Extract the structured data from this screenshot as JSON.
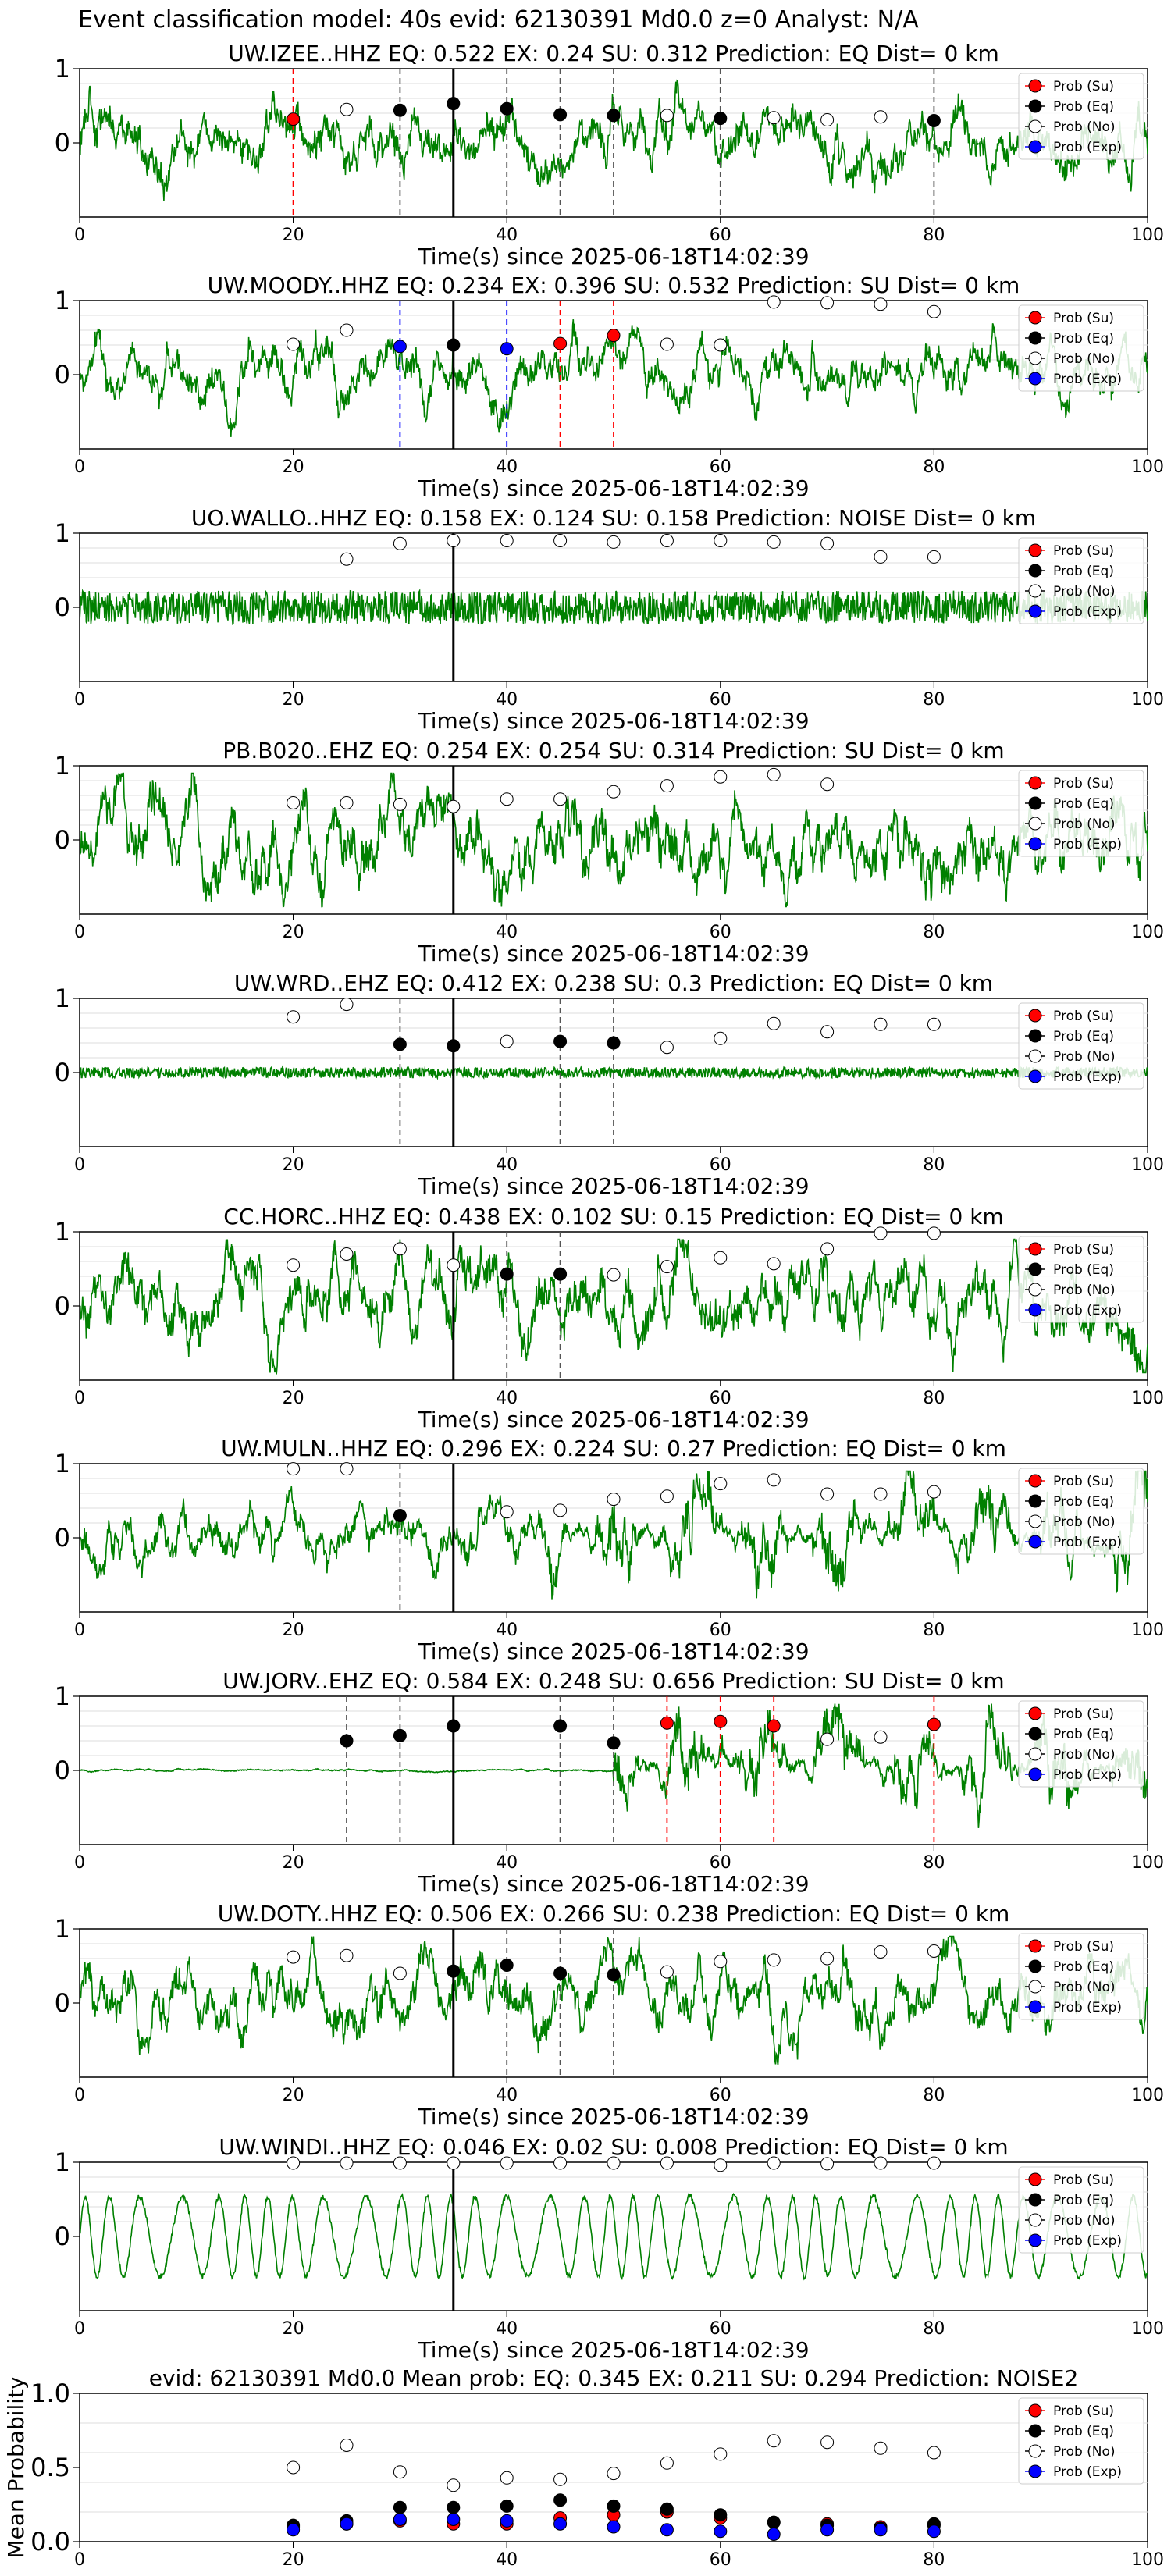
{
  "figure": {
    "title": "Event classification model: 40s evid: 62130391 Md0.0 z=0 Analyst: N/A"
  },
  "colors": {
    "waveform": "#008000",
    "su": "#ff0000",
    "eq": "#000000",
    "no": "#ffffff",
    "exp": "#0000ff",
    "origin_line": "#000000"
  },
  "legend_labels": [
    "Prob (Su)",
    "Prob (Eq)",
    "Prob (No)",
    "Prob (Exp)"
  ],
  "chart_data": [
    {
      "type": "line",
      "title": "UW.IZEE..HHZ   EQ: 0.522  EX: 0.24  SU: 0.312   Prediction: EQ    Dist= 0 km",
      "xlabel": "Time(s) since 2025-06-18T14:02:39",
      "ylabel": "",
      "xlim": [
        0,
        100
      ],
      "ylim": [
        -1,
        1
      ],
      "xticks": [
        "0",
        "20",
        "40",
        "60",
        "80",
        "100"
      ],
      "yticks": [
        "0",
        "1"
      ],
      "legend": "top-right",
      "grid": "y",
      "waveform": {
        "style": "medium",
        "amp": 0.55,
        "seed": 11
      },
      "origin_time": 35,
      "points": [
        {
          "t": 20,
          "p": 0.32,
          "c": "su"
        },
        {
          "t": 25,
          "p": 0.45,
          "c": "no"
        },
        {
          "t": 30,
          "p": 0.44,
          "c": "eq"
        },
        {
          "t": 35,
          "p": 0.53,
          "c": "eq"
        },
        {
          "t": 40,
          "p": 0.46,
          "c": "eq"
        },
        {
          "t": 45,
          "p": 0.38,
          "c": "eq"
        },
        {
          "t": 50,
          "p": 0.37,
          "c": "eq"
        },
        {
          "t": 55,
          "p": 0.37,
          "c": "no"
        },
        {
          "t": 60,
          "p": 0.33,
          "c": "eq"
        },
        {
          "t": 65,
          "p": 0.34,
          "c": "no"
        },
        {
          "t": 70,
          "p": 0.31,
          "c": "no"
        },
        {
          "t": 75,
          "p": 0.35,
          "c": "no"
        },
        {
          "t": 80,
          "p": 0.3,
          "c": "eq"
        }
      ]
    },
    {
      "type": "line",
      "title": "UW.MOODY..HHZ   EQ: 0.234  EX: 0.396  SU: 0.532   Prediction: SU    Dist= 0 km",
      "xlabel": "Time(s) since 2025-06-18T14:02:39",
      "ylabel": "",
      "xlim": [
        0,
        100
      ],
      "ylim": [
        -1,
        1
      ],
      "xticks": [
        "0",
        "20",
        "40",
        "60",
        "80",
        "100"
      ],
      "yticks": [
        "0",
        "1"
      ],
      "legend": "top-right",
      "grid": "y",
      "waveform": {
        "style": "medium",
        "amp": 0.5,
        "seed": 23
      },
      "origin_time": 35,
      "points": [
        {
          "t": 20,
          "p": 0.41,
          "c": "no"
        },
        {
          "t": 25,
          "p": 0.6,
          "c": "no"
        },
        {
          "t": 30,
          "p": 0.38,
          "c": "exp"
        },
        {
          "t": 35,
          "p": 0.4,
          "c": "eq"
        },
        {
          "t": 40,
          "p": 0.35,
          "c": "exp"
        },
        {
          "t": 45,
          "p": 0.42,
          "c": "su"
        },
        {
          "t": 50,
          "p": 0.53,
          "c": "su"
        },
        {
          "t": 55,
          "p": 0.41,
          "c": "no"
        },
        {
          "t": 60,
          "p": 0.4,
          "c": "no"
        },
        {
          "t": 65,
          "p": 0.98,
          "c": "no"
        },
        {
          "t": 70,
          "p": 0.97,
          "c": "no"
        },
        {
          "t": 75,
          "p": 0.95,
          "c": "no"
        },
        {
          "t": 80,
          "p": 0.85,
          "c": "no"
        }
      ]
    },
    {
      "type": "line",
      "title": "UO.WALLO..HHZ   EQ: 0.158  EX: 0.124  SU: 0.158   Prediction: NOISE    Dist= 0 km",
      "xlabel": "Time(s) since 2025-06-18T14:02:39",
      "ylabel": "",
      "xlim": [
        0,
        100
      ],
      "ylim": [
        -1,
        1
      ],
      "xticks": [
        "0",
        "20",
        "40",
        "60",
        "80",
        "100"
      ],
      "yticks": [
        "0",
        "1"
      ],
      "legend": "top-right",
      "grid": "y",
      "waveform": {
        "style": "noise",
        "amp": 0.25,
        "seed": 37
      },
      "origin_time": 35,
      "points": [
        {
          "t": 25,
          "p": 0.65,
          "c": "no"
        },
        {
          "t": 30,
          "p": 0.86,
          "c": "no"
        },
        {
          "t": 35,
          "p": 0.9,
          "c": "no"
        },
        {
          "t": 40,
          "p": 0.9,
          "c": "no"
        },
        {
          "t": 45,
          "p": 0.9,
          "c": "no"
        },
        {
          "t": 50,
          "p": 0.88,
          "c": "no"
        },
        {
          "t": 55,
          "p": 0.9,
          "c": "no"
        },
        {
          "t": 60,
          "p": 0.9,
          "c": "no"
        },
        {
          "t": 65,
          "p": 0.88,
          "c": "no"
        },
        {
          "t": 70,
          "p": 0.86,
          "c": "no"
        },
        {
          "t": 75,
          "p": 0.68,
          "c": "no"
        },
        {
          "t": 80,
          "p": 0.68,
          "c": "no"
        }
      ]
    },
    {
      "type": "line",
      "title": "PB.B020..EHZ   EQ: 0.254  EX: 0.254  SU: 0.314   Prediction: SU    Dist= 0 km",
      "xlabel": "Time(s) since 2025-06-18T14:02:39",
      "ylabel": "",
      "xlim": [
        0,
        100
      ],
      "ylim": [
        -1,
        1
      ],
      "xticks": [
        "0",
        "20",
        "40",
        "60",
        "80",
        "100"
      ],
      "yticks": [
        "0",
        "1"
      ],
      "legend": "top-right",
      "grid": "y",
      "waveform": {
        "style": "strong",
        "amp": 0.75,
        "seed": 41
      },
      "origin_time": 35,
      "points": [
        {
          "t": 20,
          "p": 0.5,
          "c": "no"
        },
        {
          "t": 25,
          "p": 0.5,
          "c": "no"
        },
        {
          "t": 30,
          "p": 0.48,
          "c": "no"
        },
        {
          "t": 35,
          "p": 0.45,
          "c": "no"
        },
        {
          "t": 40,
          "p": 0.55,
          "c": "no"
        },
        {
          "t": 45,
          "p": 0.55,
          "c": "no"
        },
        {
          "t": 50,
          "p": 0.65,
          "c": "no"
        },
        {
          "t": 55,
          "p": 0.73,
          "c": "no"
        },
        {
          "t": 60,
          "p": 0.85,
          "c": "no"
        },
        {
          "t": 65,
          "p": 0.88,
          "c": "no"
        },
        {
          "t": 70,
          "p": 0.75,
          "c": "no"
        }
      ]
    },
    {
      "type": "line",
      "title": "UW.WRD..EHZ   EQ: 0.412  EX: 0.238  SU: 0.3   Prediction: EQ    Dist= 0 km",
      "xlabel": "Time(s) since 2025-06-18T14:02:39",
      "ylabel": "",
      "xlim": [
        0,
        100
      ],
      "ylim": [
        -1,
        1
      ],
      "xticks": [
        "0",
        "20",
        "40",
        "60",
        "80",
        "100"
      ],
      "yticks": [
        "0",
        "1"
      ],
      "legend": "top-right",
      "grid": "y",
      "waveform": {
        "style": "flat",
        "amp": 0.08,
        "seed": 53
      },
      "origin_time": 35,
      "points": [
        {
          "t": 20,
          "p": 0.75,
          "c": "no"
        },
        {
          "t": 25,
          "p": 0.92,
          "c": "no"
        },
        {
          "t": 30,
          "p": 0.38,
          "c": "eq"
        },
        {
          "t": 35,
          "p": 0.36,
          "c": "eq"
        },
        {
          "t": 40,
          "p": 0.42,
          "c": "no"
        },
        {
          "t": 45,
          "p": 0.42,
          "c": "eq"
        },
        {
          "t": 50,
          "p": 0.4,
          "c": "eq"
        },
        {
          "t": 55,
          "p": 0.34,
          "c": "no"
        },
        {
          "t": 60,
          "p": 0.46,
          "c": "no"
        },
        {
          "t": 65,
          "p": 0.66,
          "c": "no"
        },
        {
          "t": 70,
          "p": 0.55,
          "c": "no"
        },
        {
          "t": 75,
          "p": 0.65,
          "c": "no"
        },
        {
          "t": 80,
          "p": 0.65,
          "c": "no"
        }
      ]
    },
    {
      "type": "line",
      "title": "CC.HORC..HHZ   EQ: 0.438  EX: 0.102  SU: 0.15   Prediction: EQ    Dist= 0 km",
      "xlabel": "Time(s) since 2025-06-18T14:02:39",
      "ylabel": "",
      "xlim": [
        0,
        100
      ],
      "ylim": [
        -1,
        1
      ],
      "xticks": [
        "0",
        "20",
        "40",
        "60",
        "80",
        "100"
      ],
      "yticks": [
        "0",
        "1"
      ],
      "legend": "top-right",
      "grid": "y",
      "waveform": {
        "style": "strong",
        "amp": 0.7,
        "seed": 67
      },
      "origin_time": 35,
      "points": [
        {
          "t": 20,
          "p": 0.55,
          "c": "no"
        },
        {
          "t": 25,
          "p": 0.7,
          "c": "no"
        },
        {
          "t": 30,
          "p": 0.77,
          "c": "no"
        },
        {
          "t": 35,
          "p": 0.55,
          "c": "no"
        },
        {
          "t": 40,
          "p": 0.43,
          "c": "eq"
        },
        {
          "t": 45,
          "p": 0.43,
          "c": "eq"
        },
        {
          "t": 50,
          "p": 0.42,
          "c": "no"
        },
        {
          "t": 55,
          "p": 0.53,
          "c": "no"
        },
        {
          "t": 60,
          "p": 0.65,
          "c": "no"
        },
        {
          "t": 65,
          "p": 0.57,
          "c": "no"
        },
        {
          "t": 70,
          "p": 0.77,
          "c": "no"
        },
        {
          "t": 75,
          "p": 0.98,
          "c": "no"
        },
        {
          "t": 80,
          "p": 0.98,
          "c": "no"
        }
      ]
    },
    {
      "type": "line",
      "title": "UW.MULN..HHZ   EQ: 0.296  EX: 0.224  SU: 0.27   Prediction: EQ    Dist= 0 km",
      "xlabel": "Time(s) since 2025-06-18T14:02:39",
      "ylabel": "",
      "xlim": [
        0,
        100
      ],
      "ylim": [
        -1,
        1
      ],
      "xticks": [
        "0",
        "20",
        "40",
        "60",
        "80",
        "100"
      ],
      "yticks": [
        "0",
        "1"
      ],
      "legend": "top-right",
      "grid": "y",
      "waveform": {
        "style": "burst",
        "amp": 0.45,
        "seed": 79,
        "burst_start": 44,
        "burst_amp": 0.95
      },
      "origin_time": 35,
      "points": [
        {
          "t": 20,
          "p": 0.93,
          "c": "no"
        },
        {
          "t": 25,
          "p": 0.93,
          "c": "no"
        },
        {
          "t": 30,
          "p": 0.3,
          "c": "eq"
        },
        {
          "t": 40,
          "p": 0.35,
          "c": "no"
        },
        {
          "t": 45,
          "p": 0.37,
          "c": "no"
        },
        {
          "t": 50,
          "p": 0.52,
          "c": "no"
        },
        {
          "t": 55,
          "p": 0.56,
          "c": "no"
        },
        {
          "t": 60,
          "p": 0.73,
          "c": "no"
        },
        {
          "t": 65,
          "p": 0.78,
          "c": "no"
        },
        {
          "t": 70,
          "p": 0.59,
          "c": "no"
        },
        {
          "t": 75,
          "p": 0.59,
          "c": "no"
        },
        {
          "t": 80,
          "p": 0.62,
          "c": "no"
        }
      ]
    },
    {
      "type": "line",
      "title": "UW.JORV..EHZ   EQ: 0.584  EX: 0.248  SU: 0.656   Prediction: SU    Dist= 0 km",
      "xlabel": "Time(s) since 2025-06-18T14:02:39",
      "ylabel": "",
      "xlim": [
        0,
        100
      ],
      "ylim": [
        -1,
        1
      ],
      "xticks": [
        "0",
        "20",
        "40",
        "60",
        "80",
        "100"
      ],
      "yticks": [
        "0",
        "1"
      ],
      "legend": "top-right",
      "grid": "y",
      "waveform": {
        "style": "burst",
        "amp": 0.02,
        "seed": 89,
        "burst_start": 50,
        "burst_amp": 0.9
      },
      "origin_time": 35,
      "points": [
        {
          "t": 25,
          "p": 0.4,
          "c": "eq"
        },
        {
          "t": 30,
          "p": 0.47,
          "c": "eq"
        },
        {
          "t": 35,
          "p": 0.6,
          "c": "eq"
        },
        {
          "t": 45,
          "p": 0.6,
          "c": "eq"
        },
        {
          "t": 50,
          "p": 0.37,
          "c": "eq"
        },
        {
          "t": 55,
          "p": 0.64,
          "c": "su"
        },
        {
          "t": 60,
          "p": 0.66,
          "c": "su"
        },
        {
          "t": 65,
          "p": 0.6,
          "c": "su"
        },
        {
          "t": 70,
          "p": 0.42,
          "c": "no"
        },
        {
          "t": 75,
          "p": 0.45,
          "c": "no"
        },
        {
          "t": 80,
          "p": 0.62,
          "c": "su"
        }
      ]
    },
    {
      "type": "line",
      "title": "UW.DOTY..HHZ   EQ: 0.506  EX: 0.266  SU: 0.238   Prediction: EQ    Dist= 0 km",
      "xlabel": "Time(s) since 2025-06-18T14:02:39",
      "ylabel": "",
      "xlim": [
        0,
        100
      ],
      "ylim": [
        -1,
        1
      ],
      "xticks": [
        "0",
        "20",
        "40",
        "60",
        "80",
        "100"
      ],
      "yticks": [
        "0",
        "1"
      ],
      "legend": "top-right",
      "grid": "y",
      "waveform": {
        "style": "strong",
        "amp": 0.6,
        "seed": 97
      },
      "origin_time": 35,
      "points": [
        {
          "t": 20,
          "p": 0.62,
          "c": "no"
        },
        {
          "t": 25,
          "p": 0.64,
          "c": "no"
        },
        {
          "t": 30,
          "p": 0.4,
          "c": "no"
        },
        {
          "t": 35,
          "p": 0.43,
          "c": "eq"
        },
        {
          "t": 40,
          "p": 0.51,
          "c": "eq"
        },
        {
          "t": 45,
          "p": 0.4,
          "c": "eq"
        },
        {
          "t": 50,
          "p": 0.38,
          "c": "eq"
        },
        {
          "t": 55,
          "p": 0.42,
          "c": "no"
        },
        {
          "t": 60,
          "p": 0.56,
          "c": "no"
        },
        {
          "t": 65,
          "p": 0.58,
          "c": "no"
        },
        {
          "t": 70,
          "p": 0.6,
          "c": "no"
        },
        {
          "t": 75,
          "p": 0.69,
          "c": "no"
        },
        {
          "t": 80,
          "p": 0.7,
          "c": "no"
        }
      ]
    },
    {
      "type": "line",
      "title": "UW.WINDI..HHZ   EQ: 0.046  EX: 0.02  SU: 0.008   Prediction: EQ    Dist= 0 km",
      "xlabel": "Time(s) since 2025-06-18T14:02:39",
      "ylabel": "",
      "xlim": [
        0,
        100
      ],
      "ylim": [
        -1,
        1
      ],
      "xticks": [
        "0",
        "20",
        "40",
        "60",
        "80",
        "100"
      ],
      "yticks": [
        "0",
        "1"
      ],
      "legend": "top-right",
      "grid": "y",
      "waveform": {
        "style": "smooth",
        "amp": 0.6,
        "seed": 103
      },
      "origin_time": 35,
      "points": [
        {
          "t": 20,
          "p": 0.99,
          "c": "no"
        },
        {
          "t": 25,
          "p": 0.99,
          "c": "no"
        },
        {
          "t": 30,
          "p": 0.99,
          "c": "no"
        },
        {
          "t": 35,
          "p": 0.99,
          "c": "no"
        },
        {
          "t": 40,
          "p": 0.99,
          "c": "no"
        },
        {
          "t": 45,
          "p": 0.99,
          "c": "no"
        },
        {
          "t": 50,
          "p": 0.99,
          "c": "no"
        },
        {
          "t": 55,
          "p": 0.99,
          "c": "no"
        },
        {
          "t": 60,
          "p": 0.96,
          "c": "no"
        },
        {
          "t": 65,
          "p": 0.99,
          "c": "no"
        },
        {
          "t": 70,
          "p": 0.98,
          "c": "no"
        },
        {
          "t": 75,
          "p": 0.99,
          "c": "no"
        },
        {
          "t": 80,
          "p": 0.99,
          "c": "no"
        }
      ]
    },
    {
      "type": "scatter",
      "title": "evid: 62130391  Md0.0   Mean prob:   EQ: 0.345  EX: 0.211  SU: 0.294   Prediction: NOISE2",
      "xlabel": "",
      "ylabel": "Mean Probability",
      "xlim": [
        0,
        100
      ],
      "ylim": [
        0,
        1
      ],
      "xticks": [
        "0",
        "20",
        "40",
        "60",
        "80",
        "100"
      ],
      "yticks": [
        "0.0",
        "0.5",
        "1.0"
      ],
      "legend": "top-right",
      "grid": "y",
      "series": [
        {
          "name": "Prob (Su)",
          "c": "su",
          "x": [
            20,
            25,
            30,
            35,
            40,
            45,
            50,
            55,
            60,
            65,
            70,
            75,
            80
          ],
          "y": [
            0.1,
            0.12,
            0.14,
            0.12,
            0.12,
            0.16,
            0.18,
            0.2,
            0.16,
            0.13,
            0.12,
            0.1,
            0.11
          ]
        },
        {
          "name": "Prob (Eq)",
          "c": "eq",
          "x": [
            20,
            25,
            30,
            35,
            40,
            45,
            50,
            55,
            60,
            65,
            70,
            75,
            80
          ],
          "y": [
            0.11,
            0.14,
            0.23,
            0.23,
            0.24,
            0.28,
            0.24,
            0.22,
            0.18,
            0.13,
            0.11,
            0.09,
            0.12
          ]
        },
        {
          "name": "Prob (No)",
          "c": "no",
          "x": [
            20,
            25,
            30,
            35,
            40,
            45,
            50,
            55,
            60,
            65,
            70,
            75,
            80
          ],
          "y": [
            0.5,
            0.65,
            0.47,
            0.38,
            0.43,
            0.42,
            0.46,
            0.53,
            0.59,
            0.68,
            0.67,
            0.63,
            0.6
          ]
        },
        {
          "name": "Prob (Exp)",
          "c": "exp",
          "x": [
            20,
            25,
            30,
            35,
            40,
            45,
            50,
            55,
            60,
            65,
            70,
            75,
            80
          ],
          "y": [
            0.08,
            0.12,
            0.15,
            0.15,
            0.14,
            0.12,
            0.1,
            0.08,
            0.07,
            0.05,
            0.08,
            0.08,
            0.07
          ]
        }
      ]
    }
  ]
}
